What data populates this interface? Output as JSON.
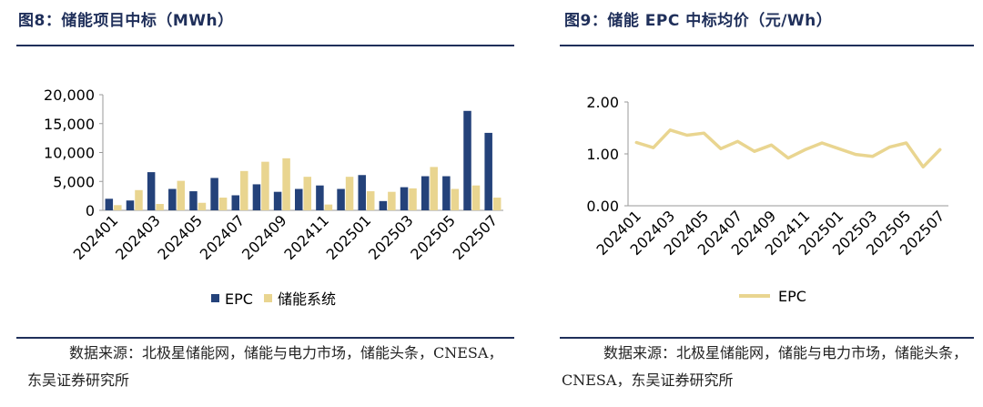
{
  "figures": [
    {
      "title": "图8：储能项目中标（MWh）",
      "source": "数据来源：北极星储能网，储能与电力市场，储能头条，CNESA，东吴证券研究所"
    },
    {
      "title": "图9：储能 EPC 中标均价（元/Wh）",
      "source": "数据来源：北极星储能网，储能与电力市场，储能头条，CNESA，东吴证券研究所"
    }
  ],
  "chart_data": [
    {
      "type": "bar",
      "title": "",
      "xlabel": "",
      "ylabel": "",
      "categories": [
        "202401",
        "202402",
        "202403",
        "202404",
        "202405",
        "202406",
        "202407",
        "202408",
        "202409",
        "202410",
        "202411",
        "202412",
        "202501",
        "202502",
        "202503",
        "202504",
        "202505",
        "202506",
        "202507"
      ],
      "tick_labels": [
        "202401",
        "202403",
        "202405",
        "202407",
        "202409",
        "202411",
        "202501",
        "202503",
        "202505",
        "202507"
      ],
      "y_tick_labels": [
        "0",
        "5,000",
        "10,000",
        "15,000",
        "20,000"
      ],
      "ylim": [
        0,
        20000
      ],
      "grid": false,
      "legend_position": "bottom",
      "series": [
        {
          "name": "EPC",
          "color": "#24427a",
          "values": [
            2000,
            1700,
            6600,
            3700,
            3300,
            5600,
            2600,
            4500,
            3200,
            3700,
            4300,
            3700,
            6100,
            1600,
            4000,
            5900,
            5900,
            17200,
            13400
          ]
        },
        {
          "name": "储能系统",
          "color": "#e9d590",
          "values": [
            900,
            3500,
            1100,
            5100,
            1300,
            2200,
            6800,
            8400,
            9000,
            5800,
            1000,
            5800,
            3300,
            3200,
            3800,
            7500,
            3700,
            4300,
            2200
          ]
        }
      ]
    },
    {
      "type": "line",
      "title": "",
      "xlabel": "",
      "ylabel": "",
      "categories": [
        "202401",
        "202402",
        "202403",
        "202404",
        "202405",
        "202406",
        "202407",
        "202408",
        "202409",
        "202410",
        "202411",
        "202412",
        "202501",
        "202502",
        "202503",
        "202504",
        "202505",
        "202506",
        "202507"
      ],
      "tick_labels": [
        "202401",
        "202403",
        "202405",
        "202407",
        "202409",
        "202411",
        "202501",
        "202503",
        "202505",
        "202507"
      ],
      "y_tick_labels": [
        "0.00",
        "1.00",
        "2.00"
      ],
      "ylim": [
        0,
        2
      ],
      "grid": false,
      "legend_position": "bottom",
      "series": [
        {
          "name": "EPC",
          "color": "#e9d590",
          "values": [
            1.22,
            1.12,
            1.46,
            1.36,
            1.4,
            1.1,
            1.24,
            1.05,
            1.17,
            0.92,
            1.08,
            1.21,
            1.1,
            0.99,
            0.95,
            1.13,
            1.21,
            0.75,
            1.08
          ]
        }
      ]
    }
  ]
}
